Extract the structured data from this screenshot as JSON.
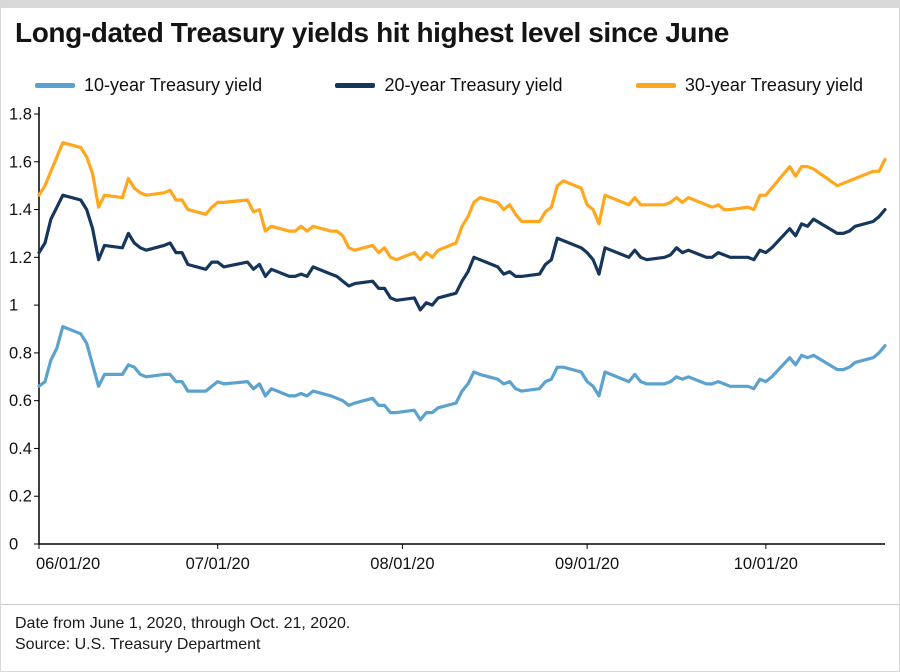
{
  "header": {
    "title": "Long-dated Treasury yields hit highest level since June"
  },
  "legend": {
    "items": [
      {
        "id": "10-year",
        "label": "10-year Treasury yield",
        "color": "#5ba2ce"
      },
      {
        "id": "20-year",
        "label": "20-year Treasury yield",
        "color": "#17365c"
      },
      {
        "id": "30-year",
        "label": "30-year Treasury yield",
        "color": "#ffa71e"
      }
    ]
  },
  "chart_data": {
    "type": "line",
    "title": "Long-dated Treasury yields hit highest level since June",
    "xlabel": "",
    "ylabel": "",
    "grid": false,
    "legend_position": "top",
    "ylim": [
      0,
      1.8
    ],
    "x_range": [
      "2020-06-01",
      "2020-10-21"
    ],
    "y_ticks": [
      {
        "label": "0",
        "value": 0
      },
      {
        "label": "0.2",
        "value": 0.2
      },
      {
        "label": "0.4",
        "value": 0.4
      },
      {
        "label": "0.6",
        "value": 0.6
      },
      {
        "label": "0.8",
        "value": 0.8
      },
      {
        "label": "1",
        "value": 1
      },
      {
        "label": "1.2",
        "value": 1.2
      },
      {
        "label": "1.4",
        "value": 1.4
      },
      {
        "label": "1.6",
        "value": 1.6
      },
      {
        "label": "1.8",
        "value": 1.8
      }
    ],
    "x_ticks": [
      {
        "label": "06/01/20",
        "date": "2020-06-01"
      },
      {
        "label": "07/01/20",
        "date": "2020-07-01"
      },
      {
        "label": "08/01/20",
        "date": "2020-08-01"
      },
      {
        "label": "09/01/20",
        "date": "2020-09-01"
      },
      {
        "label": "10/01/20",
        "date": "2020-10-01"
      }
    ],
    "x": [
      "2020-06-01",
      "2020-06-02",
      "2020-06-03",
      "2020-06-04",
      "2020-06-05",
      "2020-06-08",
      "2020-06-09",
      "2020-06-10",
      "2020-06-11",
      "2020-06-12",
      "2020-06-15",
      "2020-06-16",
      "2020-06-17",
      "2020-06-18",
      "2020-06-19",
      "2020-06-22",
      "2020-06-23",
      "2020-06-24",
      "2020-06-25",
      "2020-06-26",
      "2020-06-29",
      "2020-06-30",
      "2020-07-01",
      "2020-07-02",
      "2020-07-06",
      "2020-07-07",
      "2020-07-08",
      "2020-07-09",
      "2020-07-10",
      "2020-07-13",
      "2020-07-14",
      "2020-07-15",
      "2020-07-16",
      "2020-07-17",
      "2020-07-20",
      "2020-07-21",
      "2020-07-22",
      "2020-07-23",
      "2020-07-24",
      "2020-07-27",
      "2020-07-28",
      "2020-07-29",
      "2020-07-30",
      "2020-07-31",
      "2020-08-03",
      "2020-08-04",
      "2020-08-05",
      "2020-08-06",
      "2020-08-07",
      "2020-08-10",
      "2020-08-11",
      "2020-08-12",
      "2020-08-13",
      "2020-08-14",
      "2020-08-17",
      "2020-08-18",
      "2020-08-19",
      "2020-08-20",
      "2020-08-21",
      "2020-08-24",
      "2020-08-25",
      "2020-08-26",
      "2020-08-27",
      "2020-08-28",
      "2020-08-31",
      "2020-09-01",
      "2020-09-02",
      "2020-09-03",
      "2020-09-04",
      "2020-09-08",
      "2020-09-09",
      "2020-09-10",
      "2020-09-11",
      "2020-09-14",
      "2020-09-15",
      "2020-09-16",
      "2020-09-17",
      "2020-09-18",
      "2020-09-21",
      "2020-09-22",
      "2020-09-23",
      "2020-09-24",
      "2020-09-25",
      "2020-09-28",
      "2020-09-29",
      "2020-09-30",
      "2020-10-01",
      "2020-10-02",
      "2020-10-05",
      "2020-10-06",
      "2020-10-07",
      "2020-10-08",
      "2020-10-09",
      "2020-10-13",
      "2020-10-14",
      "2020-10-15",
      "2020-10-16",
      "2020-10-19",
      "2020-10-20",
      "2020-10-21"
    ],
    "series": [
      {
        "id": "10-year",
        "name": "10-year Treasury yield",
        "color": "#5ba2ce",
        "values": [
          0.66,
          0.68,
          0.77,
          0.82,
          0.91,
          0.88,
          0.84,
          0.75,
          0.66,
          0.71,
          0.71,
          0.75,
          0.74,
          0.71,
          0.7,
          0.71,
          0.71,
          0.68,
          0.68,
          0.64,
          0.64,
          0.66,
          0.68,
          0.67,
          0.68,
          0.65,
          0.67,
          0.62,
          0.65,
          0.62,
          0.62,
          0.63,
          0.62,
          0.64,
          0.62,
          0.61,
          0.6,
          0.58,
          0.59,
          0.61,
          0.58,
          0.58,
          0.55,
          0.55,
          0.56,
          0.52,
          0.55,
          0.55,
          0.57,
          0.59,
          0.64,
          0.67,
          0.72,
          0.71,
          0.69,
          0.67,
          0.68,
          0.65,
          0.64,
          0.65,
          0.68,
          0.69,
          0.74,
          0.74,
          0.72,
          0.68,
          0.66,
          0.62,
          0.72,
          0.68,
          0.71,
          0.68,
          0.67,
          0.67,
          0.68,
          0.7,
          0.69,
          0.7,
          0.67,
          0.67,
          0.68,
          0.67,
          0.66,
          0.66,
          0.65,
          0.69,
          0.68,
          0.7,
          0.78,
          0.75,
          0.79,
          0.78,
          0.79,
          0.73,
          0.73,
          0.74,
          0.76,
          0.78,
          0.8,
          0.83
        ]
      },
      {
        "id": "20-year",
        "name": "20-year Treasury yield",
        "color": "#17365c",
        "values": [
          1.22,
          1.26,
          1.36,
          1.41,
          1.46,
          1.44,
          1.4,
          1.32,
          1.19,
          1.25,
          1.24,
          1.3,
          1.26,
          1.24,
          1.23,
          1.25,
          1.26,
          1.22,
          1.22,
          1.17,
          1.15,
          1.18,
          1.18,
          1.16,
          1.18,
          1.15,
          1.17,
          1.12,
          1.15,
          1.12,
          1.12,
          1.13,
          1.12,
          1.16,
          1.13,
          1.12,
          1.1,
          1.08,
          1.09,
          1.1,
          1.07,
          1.07,
          1.03,
          1.02,
          1.03,
          0.98,
          1.01,
          1.0,
          1.03,
          1.05,
          1.1,
          1.14,
          1.2,
          1.19,
          1.16,
          1.13,
          1.14,
          1.12,
          1.12,
          1.13,
          1.17,
          1.19,
          1.28,
          1.27,
          1.24,
          1.22,
          1.19,
          1.13,
          1.24,
          1.2,
          1.23,
          1.2,
          1.19,
          1.2,
          1.21,
          1.24,
          1.22,
          1.23,
          1.2,
          1.2,
          1.22,
          1.21,
          1.2,
          1.2,
          1.19,
          1.23,
          1.22,
          1.24,
          1.32,
          1.29,
          1.34,
          1.33,
          1.36,
          1.3,
          1.3,
          1.31,
          1.33,
          1.35,
          1.37,
          1.4
        ]
      },
      {
        "id": "30-year",
        "name": "30-year Treasury yield",
        "color": "#ffa71e",
        "values": [
          1.46,
          1.5,
          1.56,
          1.62,
          1.68,
          1.66,
          1.62,
          1.55,
          1.41,
          1.46,
          1.45,
          1.53,
          1.49,
          1.47,
          1.46,
          1.47,
          1.48,
          1.44,
          1.44,
          1.4,
          1.38,
          1.41,
          1.43,
          1.43,
          1.44,
          1.39,
          1.4,
          1.31,
          1.33,
          1.31,
          1.31,
          1.33,
          1.31,
          1.33,
          1.31,
          1.31,
          1.29,
          1.24,
          1.23,
          1.25,
          1.22,
          1.24,
          1.2,
          1.19,
          1.22,
          1.19,
          1.22,
          1.2,
          1.23,
          1.26,
          1.33,
          1.37,
          1.43,
          1.45,
          1.43,
          1.4,
          1.42,
          1.38,
          1.35,
          1.35,
          1.39,
          1.41,
          1.5,
          1.52,
          1.49,
          1.42,
          1.4,
          1.34,
          1.46,
          1.42,
          1.45,
          1.42,
          1.42,
          1.42,
          1.43,
          1.45,
          1.43,
          1.45,
          1.42,
          1.41,
          1.42,
          1.4,
          1.4,
          1.41,
          1.4,
          1.46,
          1.46,
          1.49,
          1.58,
          1.54,
          1.58,
          1.58,
          1.57,
          1.5,
          1.51,
          1.52,
          1.53,
          1.56,
          1.56,
          1.61
        ]
      }
    ]
  },
  "footer": {
    "note_date": "Date from June 1, 2020, through Oct. 21, 2020.",
    "note_source": "Source: U.S. Treasury Department"
  }
}
